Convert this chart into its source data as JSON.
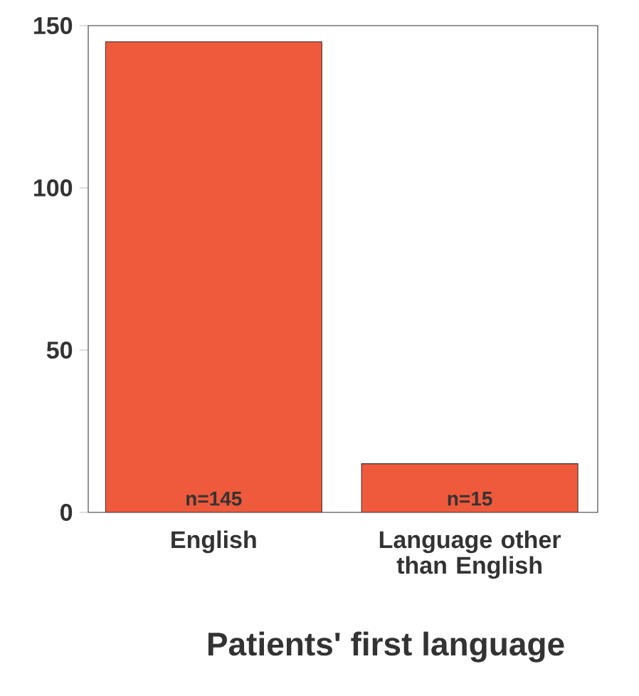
{
  "chart_data": {
    "type": "bar",
    "xlabel": "Patients' first language",
    "categories": [
      "English",
      "Language other than English"
    ],
    "values": [
      145,
      15
    ],
    "color": "#ef5a3c",
    "value_labels": [
      "n=145",
      "n=15"
    ],
    "ylim": [
      0,
      150
    ],
    "yticks": [
      0,
      50,
      100,
      150
    ],
    "grid": false
  }
}
